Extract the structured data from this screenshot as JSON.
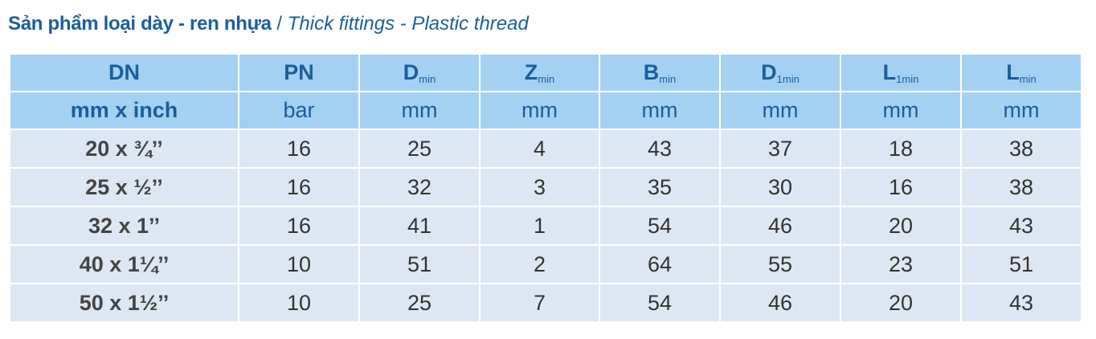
{
  "title": {
    "vi": "Sản phẩm loại dày - ren nhựa",
    "sep": "/",
    "en": "Thick fittings - Plastic thread"
  },
  "table": {
    "headers": [
      {
        "main": "DN"
      },
      {
        "main": "PN"
      },
      {
        "main": "D",
        "sub": "min"
      },
      {
        "main": "Z",
        "sub": "min"
      },
      {
        "main": "B",
        "sub": "min"
      },
      {
        "main": "D",
        "sub": "1min"
      },
      {
        "main": "L",
        "sub": "1min"
      },
      {
        "main": "L",
        "sub": "min"
      }
    ],
    "units": [
      "mm x inch",
      "bar",
      "mm",
      "mm",
      "mm",
      "mm",
      "mm",
      "mm"
    ],
    "rows": [
      [
        "20 x ¾’’",
        16,
        25,
        4,
        43,
        37,
        18,
        38
      ],
      [
        "25 x ½’’",
        16,
        32,
        3,
        35,
        30,
        16,
        38
      ],
      [
        "32 x 1’’",
        16,
        41,
        1,
        54,
        46,
        20,
        43
      ],
      [
        "40 x 1¼’’",
        10,
        51,
        2,
        64,
        55,
        23,
        51
      ],
      [
        "50 x 1½’’",
        10,
        25,
        7,
        54,
        46,
        20,
        43
      ]
    ]
  }
}
